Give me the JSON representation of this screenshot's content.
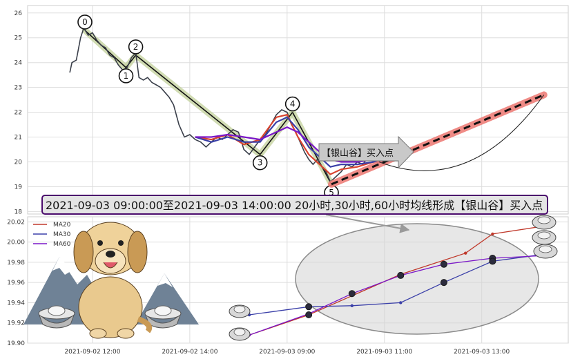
{
  "chart_data": [
    {
      "type": "line",
      "panel": "price",
      "ylim": [
        17.9,
        26.3
      ],
      "yticks": [
        18,
        19,
        20,
        21,
        22,
        23,
        24,
        25,
        26
      ],
      "xlim": [
        0,
        100
      ],
      "price_path": [
        [
          7.8,
          23.6
        ],
        [
          8.2,
          24.0
        ],
        [
          9.0,
          24.1
        ],
        [
          9.8,
          25.0
        ],
        [
          10.4,
          25.4
        ],
        [
          11.2,
          25.1
        ],
        [
          12.0,
          25.2
        ],
        [
          12.8,
          24.9
        ],
        [
          13.6,
          24.7
        ],
        [
          14.4,
          24.6
        ],
        [
          15.2,
          24.3
        ],
        [
          16.0,
          24.2
        ],
        [
          16.8,
          23.9
        ],
        [
          17.6,
          23.7
        ],
        [
          18.4,
          23.8
        ],
        [
          19.2,
          24.2
        ],
        [
          20.0,
          24.4
        ],
        [
          20.6,
          23.4
        ],
        [
          21.4,
          23.3
        ],
        [
          22.2,
          23.4
        ],
        [
          23.0,
          23.2
        ],
        [
          23.8,
          23.1
        ],
        [
          24.6,
          23.0
        ],
        [
          25.4,
          22.8
        ],
        [
          26.2,
          22.6
        ],
        [
          27.0,
          22.3
        ],
        [
          28.0,
          21.5
        ],
        [
          29.0,
          21.0
        ],
        [
          30.0,
          21.1
        ],
        [
          31.0,
          20.9
        ],
        [
          32.0,
          20.8
        ],
        [
          33.0,
          20.6
        ],
        [
          34.0,
          20.8
        ],
        [
          35.0,
          21.0
        ],
        [
          36.0,
          20.9
        ],
        [
          37.0,
          21.1
        ],
        [
          38.0,
          21.3
        ],
        [
          39.0,
          21.2
        ],
        [
          40.0,
          20.5
        ],
        [
          41.0,
          20.3
        ],
        [
          42.0,
          20.6
        ],
        [
          43.0,
          20.9
        ],
        [
          44.0,
          21.1
        ],
        [
          45.0,
          21.5
        ],
        [
          46.0,
          21.9
        ],
        [
          47.0,
          22.1
        ],
        [
          48.0,
          22.0
        ],
        [
          48.8,
          21.5
        ],
        [
          49.6,
          21.2
        ],
        [
          50.4,
          20.8
        ],
        [
          51.2,
          20.4
        ],
        [
          52.0,
          20.1
        ],
        [
          52.8,
          19.9
        ],
        [
          53.6,
          20.1
        ],
        [
          54.4,
          19.8
        ],
        [
          55.2,
          19.6
        ],
        [
          56.0,
          19.2
        ],
        [
          57.0,
          19.4
        ],
        [
          58.0,
          19.6
        ],
        [
          59.0,
          19.9
        ],
        [
          60.0,
          19.8
        ],
        [
          61.0,
          20.0
        ],
        [
          62.0,
          19.9
        ],
        [
          63.0,
          20.2
        ],
        [
          64.0,
          20.1
        ],
        [
          65.0,
          19.9
        ]
      ],
      "moving_averages": [
        {
          "name": "MA20",
          "color": "#d9432f",
          "points": [
            [
              31,
              21.0
            ],
            [
              34,
              20.9
            ],
            [
              37,
              21.1
            ],
            [
              40,
              20.7
            ],
            [
              43,
              20.9
            ],
            [
              46,
              21.8
            ],
            [
              48,
              21.9
            ],
            [
              50,
              21.0
            ],
            [
              52,
              20.3
            ],
            [
              54,
              19.9
            ],
            [
              56,
              19.5
            ],
            [
              58,
              19.7
            ],
            [
              61,
              19.8
            ],
            [
              64,
              20.0
            ],
            [
              66,
              20.0
            ]
          ]
        },
        {
          "name": "MA30",
          "color": "#3a3fa8",
          "points": [
            [
              31,
              21.0
            ],
            [
              34,
              20.8
            ],
            [
              37,
              21.0
            ],
            [
              40,
              20.8
            ],
            [
              43,
              20.8
            ],
            [
              46,
              21.6
            ],
            [
              48,
              21.8
            ],
            [
              50,
              21.3
            ],
            [
              52,
              20.6
            ],
            [
              54,
              20.2
            ],
            [
              56,
              19.8
            ],
            [
              58,
              19.9
            ],
            [
              61,
              19.9
            ],
            [
              64,
              20.0
            ],
            [
              66,
              20.0
            ]
          ]
        },
        {
          "name": "MA60",
          "color": "#7a16c8",
          "points": [
            [
              31,
              21.0
            ],
            [
              34,
              21.0
            ],
            [
              37,
              21.1
            ],
            [
              40,
              21.0
            ],
            [
              43,
              20.9
            ],
            [
              46,
              21.2
            ],
            [
              48,
              21.4
            ],
            [
              50,
              21.2
            ],
            [
              52,
              20.8
            ],
            [
              54,
              20.4
            ],
            [
              56,
              20.1
            ],
            [
              58,
              20.0
            ],
            [
              61,
              20.0
            ],
            [
              64,
              20.1
            ],
            [
              66,
              20.1
            ]
          ]
        }
      ],
      "pivots": [
        {
          "label": "0",
          "x": 10.6,
          "y": 25.3
        },
        {
          "label": "1",
          "x": 18.2,
          "y": 23.8
        },
        {
          "label": "2",
          "x": 20.0,
          "y": 24.3
        },
        {
          "label": "3",
          "x": 43.0,
          "y": 20.3
        },
        {
          "label": "4",
          "x": 49.0,
          "y": 22.0
        },
        {
          "label": "5",
          "x": 56.2,
          "y": 19.1
        }
      ],
      "projection": {
        "from": [
          56.2,
          19.1
        ],
        "to": [
          95.5,
          22.7
        ]
      },
      "buy_callout": "【银山谷】买入点",
      "annotation": "2021-09-03 09:00:00至2021-09-03 14:00:00 20小时,30小时,60小时均线形成【银山谷】买入点"
    },
    {
      "type": "line",
      "panel": "ma_zoom",
      "categories": [
        "2021-09-02 12:00",
        "2021-09-02 14:00",
        "2021-09-03 09:00",
        "2021-09-03 11:00",
        "2021-09-03 13:00"
      ],
      "ylim": [
        19.9,
        20.025
      ],
      "yticks": [
        "19.90",
        "19.92",
        "19.94",
        "19.96",
        "19.98",
        "20.00",
        "20.02"
      ],
      "legend": "top-left",
      "series": [
        {
          "name": "MA20",
          "color": "#c0392b",
          "points": [
            [
              41,
              19.908
            ],
            [
              52,
              19.928
            ],
            [
              69,
              19.968
            ],
            [
              81,
              19.989
            ],
            [
              86,
              20.008
            ],
            [
              97,
              20.017
            ]
          ]
        },
        {
          "name": "MA30",
          "color": "#3a3fa8",
          "points": [
            [
              41,
              19.928
            ],
            [
              52,
              19.936
            ],
            [
              60,
              19.937
            ],
            [
              69,
              19.94
            ],
            [
              77,
              19.96
            ],
            [
              86,
              19.981
            ],
            [
              97,
              19.989
            ]
          ]
        },
        {
          "name": "MA60",
          "color": "#7a16c8",
          "points": [
            [
              41,
              19.908
            ],
            [
              52,
              19.929
            ],
            [
              60,
              19.949
            ],
            [
              69,
              19.967
            ],
            [
              77,
              19.978
            ],
            [
              86,
              19.984
            ],
            [
              97,
              19.987
            ]
          ]
        }
      ],
      "markers": [
        [
          52,
          19.928
        ],
        [
          52,
          19.936
        ],
        [
          60,
          19.949
        ],
        [
          69,
          19.967
        ],
        [
          77,
          19.978
        ],
        [
          77,
          19.96
        ],
        [
          86,
          19.984
        ],
        [
          86,
          19.981
        ]
      ]
    }
  ]
}
